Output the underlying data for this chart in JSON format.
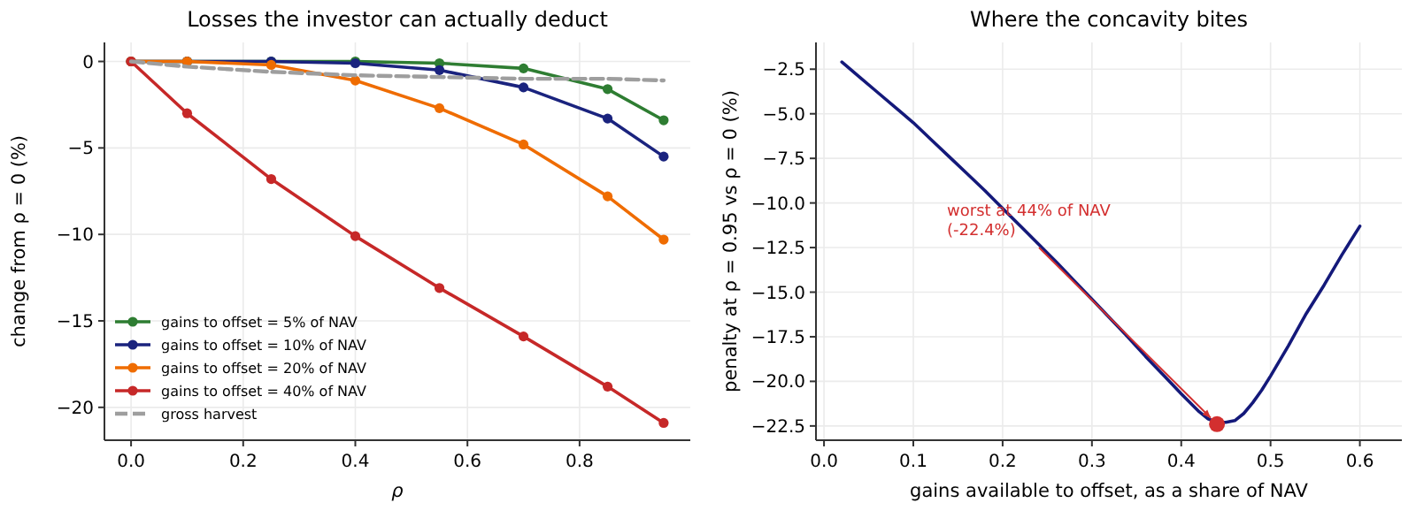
{
  "chart_data": [
    {
      "type": "line",
      "title": "Losses the investor can actually deduct",
      "xlabel": "ρ",
      "ylabel": "change from ρ = 0 (%)",
      "x": [
        0,
        0.1,
        0.25,
        0.4,
        0.55,
        0.7,
        0.85,
        0.95
      ],
      "xlim": [
        -0.0475,
        0.9975
      ],
      "xticks": [
        {
          "value": 0,
          "label": "0.0"
        },
        {
          "value": 0.2,
          "label": "0.2"
        },
        {
          "value": 0.4,
          "label": "0.4"
        },
        {
          "value": 0.6,
          "label": "0.6"
        },
        {
          "value": 0.8,
          "label": "0.8"
        }
      ],
      "ylim": [
        -21.9,
        1.1
      ],
      "yticks": [
        {
          "value": 0,
          "label": "0"
        },
        {
          "value": -5,
          "label": "−5"
        },
        {
          "value": -10,
          "label": "−10"
        },
        {
          "value": -15,
          "label": "−15"
        },
        {
          "value": -20,
          "label": "−20"
        }
      ],
      "grid": true,
      "legend": "bottom left",
      "marker": "circle",
      "line_style": "solid",
      "series": [
        {
          "name": "gains to offset = 5% of NAV",
          "color": "#2e7d32",
          "values": [
            0,
            0,
            0,
            0,
            -0.1,
            -0.4,
            -1.6,
            -3.4
          ]
        },
        {
          "name": "gains to offset = 10% of NAV",
          "color": "#1a237e",
          "values": [
            0,
            0,
            0,
            -0.1,
            -0.5,
            -1.5,
            -3.3,
            -5.5
          ]
        },
        {
          "name": "gains to offset = 20% of NAV",
          "color": "#ef6c00",
          "values": [
            0,
            0,
            -0.2,
            -1.1,
            -2.7,
            -4.8,
            -7.8,
            -10.3
          ]
        },
        {
          "name": "gains to offset = 40% of NAV",
          "color": "#c62828",
          "values": [
            0,
            -3.0,
            -6.8,
            -10.1,
            -13.1,
            -15.9,
            -18.8,
            -20.9
          ]
        },
        {
          "name": "gross harvest",
          "color": "#9e9e9e",
          "marker": "none",
          "line_style": "dashed",
          "values": [
            0,
            -0.3,
            -0.6,
            -0.8,
            -0.9,
            -1.0,
            -1.0,
            -1.1
          ]
        }
      ]
    },
    {
      "type": "line",
      "title": "Where the concavity bites",
      "xlabel": "gains available to offset, as a share of NAV",
      "ylabel": "penalty at ρ = 0.95 vs ρ = 0 (%)",
      "xlim": [
        -0.009,
        0.647
      ],
      "xticks": [
        {
          "value": 0,
          "label": "0.0"
        },
        {
          "value": 0.1,
          "label": "0.1"
        },
        {
          "value": 0.2,
          "label": "0.2"
        },
        {
          "value": 0.3,
          "label": "0.3"
        },
        {
          "value": 0.4,
          "label": "0.4"
        },
        {
          "value": 0.5,
          "label": "0.5"
        },
        {
          "value": 0.6,
          "label": "0.6"
        }
      ],
      "ylim": [
        -23.3,
        -1.0
      ],
      "yticks": [
        {
          "value": -2.5,
          "label": "−2.5"
        },
        {
          "value": -5,
          "label": "−5.0"
        },
        {
          "value": -7.5,
          "label": "−7.5"
        },
        {
          "value": -10,
          "label": "−10.0"
        },
        {
          "value": -12.5,
          "label": "−12.5"
        },
        {
          "value": -15,
          "label": "−15.0"
        },
        {
          "value": -17.5,
          "label": "−17.5"
        },
        {
          "value": -20,
          "label": "−20.0"
        },
        {
          "value": -22.5,
          "label": "−22.5"
        }
      ],
      "grid": true,
      "legend": false,
      "marker": "none",
      "line_style": "solid",
      "annotations": [
        {
          "text": "worst at 44% of NAV\n(-22.4%)",
          "x": 0.44,
          "y": -22.4
        }
      ],
      "series": [
        {
          "color": "#14197a",
          "x": [
            0.02,
            0.04,
            0.06,
            0.08,
            0.1,
            0.12,
            0.14,
            0.16,
            0.18,
            0.2,
            0.22,
            0.24,
            0.26,
            0.28,
            0.3,
            0.32,
            0.34,
            0.36,
            0.38,
            0.4,
            0.42,
            0.43,
            0.44,
            0.45,
            0.46,
            0.47,
            0.48,
            0.49,
            0.5,
            0.52,
            0.54,
            0.56,
            0.58,
            0.6
          ],
          "values": [
            -2.1,
            -2.95,
            -3.8,
            -4.65,
            -5.5,
            -6.45,
            -7.4,
            -8.35,
            -9.3,
            -10.3,
            -11.3,
            -12.3,
            -13.3,
            -14.35,
            -15.4,
            -16.45,
            -17.5,
            -18.6,
            -19.65,
            -20.7,
            -21.7,
            -22.1,
            -22.3,
            -22.3,
            -22.2,
            -21.8,
            -21.2,
            -20.5,
            -19.7,
            -18.0,
            -16.2,
            -14.6,
            -12.9,
            -11.3
          ]
        },
        {
          "type": "scatter",
          "color": "#d32f2f",
          "marker": "circle",
          "x": [
            0.44
          ],
          "values": [
            -22.4
          ]
        }
      ]
    }
  ]
}
